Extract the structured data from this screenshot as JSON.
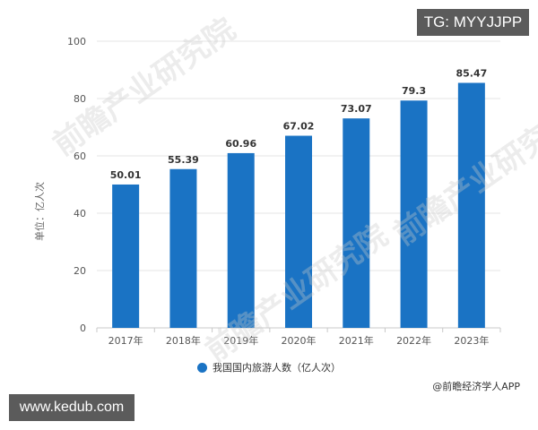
{
  "chart_data": {
    "type": "bar",
    "title": "",
    "categories": [
      "2017年",
      "2018年",
      "2019年",
      "2020年",
      "2021年",
      "2022年",
      "2023年"
    ],
    "series": [
      {
        "name": "我国国内旅游人数（亿人次）",
        "values": [
          50.01,
          55.39,
          60.96,
          67.02,
          73.07,
          79.3,
          85.47
        ],
        "color": "#1a73c4"
      }
    ],
    "value_labels": [
      "50.01",
      "55.39",
      "60.96",
      "67.02",
      "73.07",
      "79.3",
      "85.47"
    ],
    "xlabel": "",
    "ylabel": "单位：亿人次",
    "ylim": [
      0,
      100
    ],
    "yticks": [
      "0",
      "20",
      "40",
      "60",
      "80",
      "100"
    ],
    "grid": true,
    "legend_position": "bottom"
  },
  "legend": {
    "label": "我国国内旅游人数（亿人次）"
  },
  "source": "@前瞻经济学人APP",
  "badges": {
    "tg": "TG: MYYJJPP",
    "url": "www.kedub.com"
  },
  "watermark": "前瞻产业研究院"
}
